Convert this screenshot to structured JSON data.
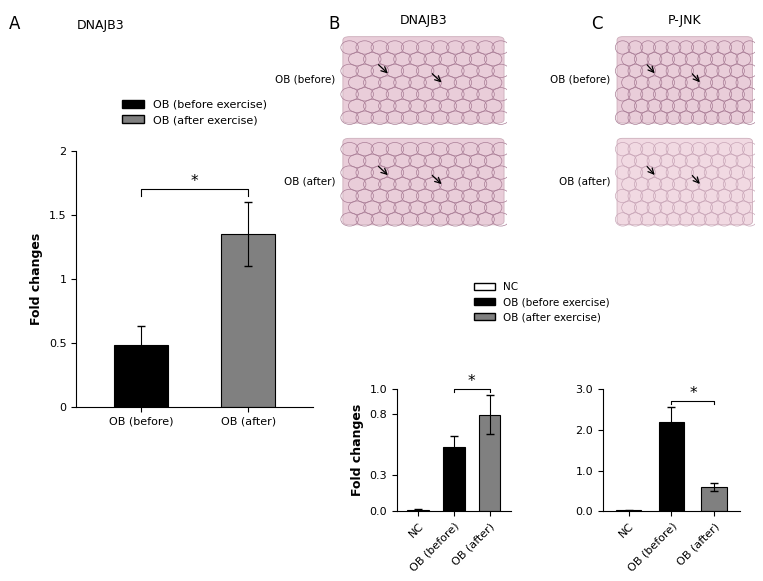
{
  "panel_labels": [
    "A",
    "B",
    "C"
  ],
  "images": [
    {
      "title": "DNAJB3",
      "labels": [
        "OB (before)",
        "OB (after)"
      ]
    },
    {
      "title": "P-JNK",
      "labels": [
        "OB (before)",
        "OB (after)"
      ]
    }
  ],
  "chart_data": [
    {
      "type": "bar",
      "title": "DNAJB3",
      "y_label": "Fold changes",
      "categories": [
        "OB (before)",
        "OB (after)"
      ],
      "series": [
        {
          "name": "OB (before exercise)",
          "color": "#000000",
          "values": [
            0.48,
            null
          ],
          "errors": [
            0.15,
            null
          ]
        },
        {
          "name": "OB (after exercise)",
          "color": "#808080",
          "values": [
            null,
            1.35
          ],
          "errors": [
            null,
            0.25
          ]
        }
      ],
      "ylim": [
        0,
        2
      ],
      "yticks": [
        0,
        0.5,
        1,
        1.5,
        2
      ],
      "legend": "upper center",
      "annotations": [
        {
          "text": "*",
          "from": "OB (before)",
          "to": "OB (after)"
        }
      ]
    },
    {
      "type": "bar",
      "y_label": "Fold changes",
      "categories": [
        "NC",
        "OB (before)",
        "OB (after)"
      ],
      "series": [
        {
          "name": "NC",
          "color": "#ffffff",
          "values": [
            0.01,
            null,
            null
          ],
          "errors": [
            0.01,
            null,
            null
          ]
        },
        {
          "name": "OB (before exercise)",
          "color": "#000000",
          "values": [
            null,
            0.53,
            null
          ],
          "errors": [
            null,
            0.09,
            null
          ]
        },
        {
          "name": "OB (after exercise)",
          "color": "#808080",
          "values": [
            null,
            null,
            0.79
          ],
          "errors": [
            null,
            null,
            0.16
          ]
        }
      ],
      "ylim": [
        0,
        1.0
      ],
      "yticks": [
        {
          "value": 0,
          "label": "0.0"
        },
        0.3,
        0.8,
        1.0
      ],
      "legend": "center",
      "annotations": [
        {
          "text": "*",
          "from": "OB (before)",
          "to": "OB (after)"
        }
      ]
    },
    {
      "type": "bar",
      "categories": [
        "NC",
        "OB (before)",
        "OB (after)"
      ],
      "series": [
        {
          "name": "NC",
          "color": "#ffffff",
          "values": [
            0.02,
            null,
            null
          ],
          "errors": [
            0.01,
            null,
            null
          ]
        },
        {
          "name": "OB (before exercise)",
          "color": "#000000",
          "values": [
            null,
            2.2,
            null
          ],
          "errors": [
            null,
            0.37,
            null
          ]
        },
        {
          "name": "OB (after exercise)",
          "color": "#808080",
          "values": [
            null,
            null,
            0.6
          ],
          "errors": [
            null,
            null,
            0.1
          ]
        }
      ],
      "ylim": [
        0,
        3.0
      ],
      "yticks": [
        {
          "value": 0,
          "label": "0.0"
        },
        1.0,
        2.0,
        3.0
      ],
      "annotations": [
        {
          "text": "*",
          "from": "OB (before)",
          "to": "OB (after)"
        }
      ]
    }
  ]
}
